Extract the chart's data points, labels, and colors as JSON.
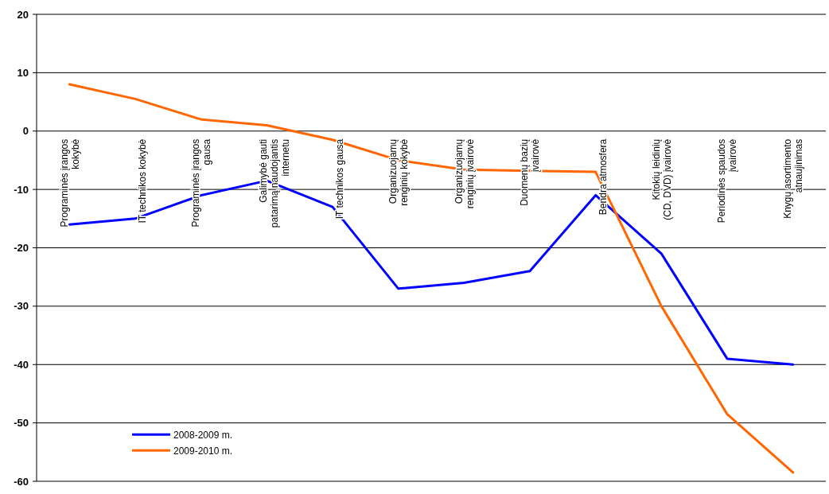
{
  "chart_data": {
    "type": "line",
    "categories": [
      "Programinės įrangos kokybė",
      "IT technikos kokybė",
      "Programinės įrangos gausa",
      "Galimybė gauti patarimą naudojantis internetu",
      "IT technikos gausa",
      "Organizuojamų renginių kokybė",
      "Organizuojamų renginių įvairovė",
      "Duomenų bazių įvairovė",
      "Bendra atmosfera",
      "Kitokių leidinių (CD, DVD) įvairovė",
      "Periodinės spaudos įvairovė",
      "Knygų asortimento atnaujinimas"
    ],
    "series": [
      {
        "name": "2008-2009 m.",
        "color": "#0000ff",
        "values": [
          -16,
          -15,
          -11,
          -8.5,
          -13,
          -27,
          -26,
          -24,
          -11,
          -21,
          -39,
          -40
        ]
      },
      {
        "name": "2009-2010 m.",
        "color": "#ff6600",
        "values": [
          8,
          5.5,
          2,
          1,
          -1.5,
          -5,
          -6.6,
          -6.8,
          -7,
          -30,
          -48.5,
          -58.5
        ]
      }
    ],
    "ylim": [
      -60,
      20
    ],
    "yticks": [
      -60,
      -50,
      -40,
      -30,
      -20,
      -10,
      0,
      10,
      20
    ],
    "grid": "y",
    "legend": "bottom left",
    "marker": "none",
    "line_style": "solid"
  }
}
